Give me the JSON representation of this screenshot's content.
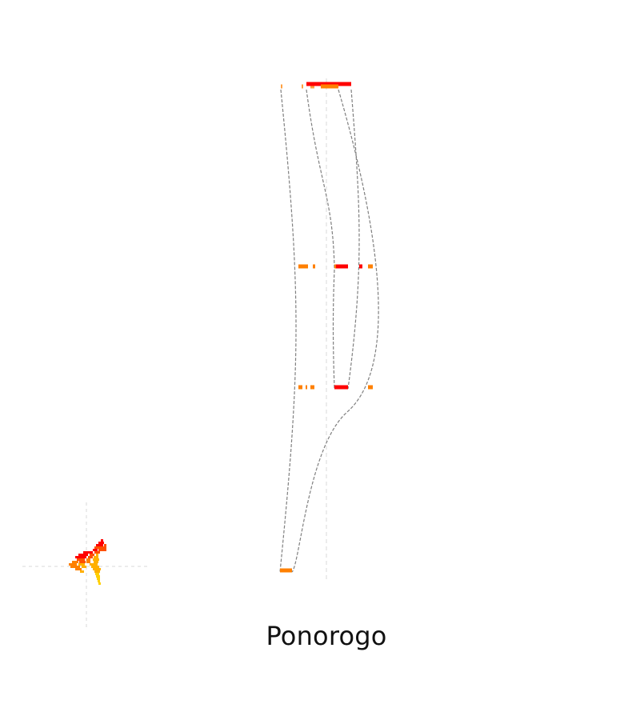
{
  "chart_data": {
    "type": "other",
    "title": "Ponorogo",
    "colors": {
      "level_high": "#ff0000",
      "level_mid": "#ff8000",
      "level_low": "#ffa040",
      "level_inset_3": "#ff5000",
      "level_inset_4": "#ffb000",
      "level_inset_5": "#ffd000",
      "connector": "#808080",
      "guide": "#d9d9d9"
    },
    "levels": [
      {
        "name": "top",
        "marks": [
          {
            "color": "level_low",
            "start": -57,
            "length": 2
          },
          {
            "color": "level_low",
            "start": -31,
            "length": 2
          },
          {
            "color": "level_low",
            "start": -20,
            "length": 5
          },
          {
            "color": "level_high",
            "start": -25,
            "length": 56
          },
          {
            "color": "level_mid",
            "start": -7,
            "length": 22
          }
        ]
      },
      {
        "name": "upper",
        "marks": [
          {
            "color": "level_mid",
            "start": -35,
            "length": 12
          },
          {
            "color": "level_mid",
            "start": -17,
            "length": 3
          },
          {
            "color": "level_high",
            "start": 10,
            "length": 17
          },
          {
            "color": "level_mid",
            "start": 10,
            "length": 2
          },
          {
            "color": "level_high",
            "start": 41,
            "length": 4
          },
          {
            "color": "level_mid",
            "start": 52,
            "length": 6
          }
        ]
      },
      {
        "name": "middle",
        "marks": [
          {
            "color": "level_mid",
            "start": -35,
            "length": 5
          },
          {
            "color": "level_mid",
            "start": -26,
            "length": 2
          },
          {
            "color": "level_mid",
            "start": -20,
            "length": 5
          },
          {
            "color": "level_high",
            "start": 10,
            "length": 17
          },
          {
            "color": "level_mid",
            "start": 52,
            "length": 6
          }
        ]
      },
      {
        "name": "bottom",
        "marks": [
          {
            "color": "level_mid",
            "start": -58,
            "length": 15
          }
        ]
      }
    ],
    "connections": [
      {
        "from": [
          "top",
          -57
        ],
        "to": [
          "bottom",
          -58
        ]
      },
      {
        "from": [
          "top",
          -25
        ],
        "to": [
          "upper",
          10
        ]
      },
      {
        "from": [
          "upper",
          10
        ],
        "to": [
          "middle",
          10
        ]
      },
      {
        "from": [
          "top",
          31
        ],
        "to": [
          "middle",
          27
        ]
      },
      {
        "from": [
          "top",
          15
        ],
        "to": [
          "bottom",
          -43
        ]
      }
    ],
    "inset": {
      "rows": [
        {
          "dy": -34,
          "segments": [
            {
              "dx": 18,
              "len": 3,
              "color": "level_high"
            }
          ]
        },
        {
          "dy": -31,
          "segments": [
            {
              "dx": 15,
              "len": 7,
              "color": "level_high"
            }
          ]
        },
        {
          "dy": -28,
          "segments": [
            {
              "dx": 12,
              "len": 9,
              "color": "level_high"
            },
            {
              "dx": 22,
              "len": 3,
              "color": "level_inset_3"
            }
          ]
        },
        {
          "dy": -25,
          "segments": [
            {
              "dx": 10,
              "len": 15,
              "color": "level_inset_3"
            }
          ]
        },
        {
          "dy": -22,
          "segments": [
            {
              "dx": 8,
              "len": 6,
              "color": "level_high"
            },
            {
              "dx": 15,
              "len": 10,
              "color": "level_inset_3"
            }
          ]
        },
        {
          "dy": -19,
          "segments": [
            {
              "dx": -4,
              "len": 12,
              "color": "level_high"
            },
            {
              "dx": 10,
              "len": 7,
              "color": "level_inset_3"
            }
          ]
        },
        {
          "dy": -16,
          "segments": [
            {
              "dx": -10,
              "len": 12,
              "color": "level_high"
            },
            {
              "dx": 4,
              "len": 6,
              "color": "level_inset_3"
            },
            {
              "dx": 12,
              "len": 3,
              "color": "level_inset_4"
            }
          ]
        },
        {
          "dy": -13,
          "segments": [
            {
              "dx": -14,
              "len": 14,
              "color": "level_high"
            },
            {
              "dx": 2,
              "len": 6,
              "color": "level_inset_3"
            },
            {
              "dx": 9,
              "len": 6,
              "color": "level_inset_4"
            }
          ]
        },
        {
          "dy": -10,
          "segments": [
            {
              "dx": -12,
              "len": 10,
              "color": "level_inset_3"
            },
            {
              "dx": 0,
              "len": 5,
              "color": "level_mid"
            },
            {
              "dx": 8,
              "len": 8,
              "color": "level_inset_4"
            }
          ]
        },
        {
          "dy": -7,
          "segments": [
            {
              "dx": -18,
              "len": 8,
              "color": "level_mid"
            },
            {
              "dx": -9,
              "len": 8,
              "color": "level_inset_3"
            },
            {
              "dx": 0,
              "len": 5,
              "color": "level_mid"
            },
            {
              "dx": 9,
              "len": 6,
              "color": "level_inset_4"
            }
          ]
        },
        {
          "dy": -4,
          "segments": [
            {
              "dx": -22,
              "len": 10,
              "color": "level_mid"
            },
            {
              "dx": -10,
              "len": 8,
              "color": "level_inset_4"
            },
            {
              "dx": 4,
              "len": 10,
              "color": "level_inset_4"
            }
          ]
        },
        {
          "dy": -1,
          "segments": [
            {
              "dx": -20,
              "len": 12,
              "color": "level_mid"
            },
            {
              "dx": -6,
              "len": 6,
              "color": "level_inset_4"
            },
            {
              "dx": 6,
              "len": 10,
              "color": "level_inset_4"
            }
          ]
        },
        {
          "dy": 2,
          "segments": [
            {
              "dx": -14,
              "len": 8,
              "color": "level_mid"
            },
            {
              "dx": 8,
              "len": 10,
              "color": "level_inset_4"
            }
          ]
        },
        {
          "dy": 5,
          "segments": [
            {
              "dx": -8,
              "len": 5,
              "color": "level_inset_4"
            },
            {
              "dx": 10,
              "len": 7,
              "color": "level_inset_4"
            }
          ]
        },
        {
          "dy": 8,
          "segments": [
            {
              "dx": 11,
              "len": 5,
              "color": "level_inset_5"
            }
          ]
        },
        {
          "dy": 11,
          "segments": [
            {
              "dx": 12,
              "len": 5,
              "color": "level_inset_5"
            }
          ]
        },
        {
          "dy": 14,
          "segments": [
            {
              "dx": 13,
              "len": 4,
              "color": "level_inset_5"
            }
          ]
        },
        {
          "dy": 17,
          "segments": [
            {
              "dx": 14,
              "len": 3,
              "color": "level_inset_5"
            }
          ]
        },
        {
          "dy": 20,
          "segments": [
            {
              "dx": 15,
              "len": 3,
              "color": "level_inset_5"
            }
          ]
        }
      ]
    }
  }
}
